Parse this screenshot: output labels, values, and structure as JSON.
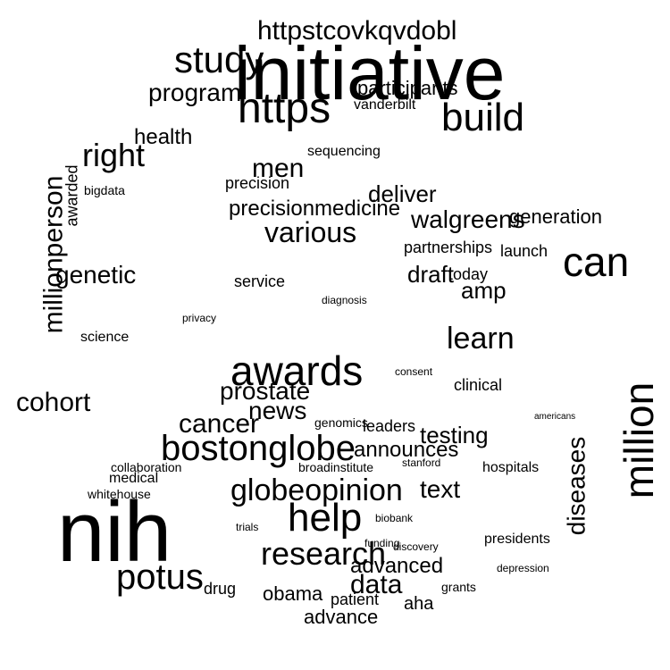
{
  "words": [
    "nih",
    "initiative",
    "awards",
    "bostonglobe",
    "can",
    "million",
    "help",
    "https",
    "build",
    "globeopinion",
    "research",
    "potus",
    "study",
    "data",
    "cohort",
    "millionperson",
    "right",
    "cancer",
    "learn",
    "various",
    "precisionmedicine",
    "httpstcovkqvdobl",
    "program",
    "health",
    "news",
    "genetic",
    "prostate",
    "testing",
    "diseases",
    "walgreens",
    "deliver",
    "amp",
    "advanced",
    "generation",
    "draft",
    "obama",
    "announces",
    "vanderbilt",
    "participants",
    "men",
    "awarded",
    "advance",
    "text",
    "launch",
    "service",
    "clinical",
    "today",
    "leaders",
    "grants",
    "patient",
    "aha",
    "americans",
    "depression",
    "whitehouse",
    "bigdata",
    "partnerships",
    "broadinstitute",
    "funding",
    "diagnosis",
    "privacy",
    "precision",
    "genomics",
    "hospitals",
    "drug",
    "science",
    "sequencing",
    "trials",
    "discovery",
    "biobank",
    "consent",
    "collaboration",
    "presidents",
    "stanford",
    "medical"
  ]
}
